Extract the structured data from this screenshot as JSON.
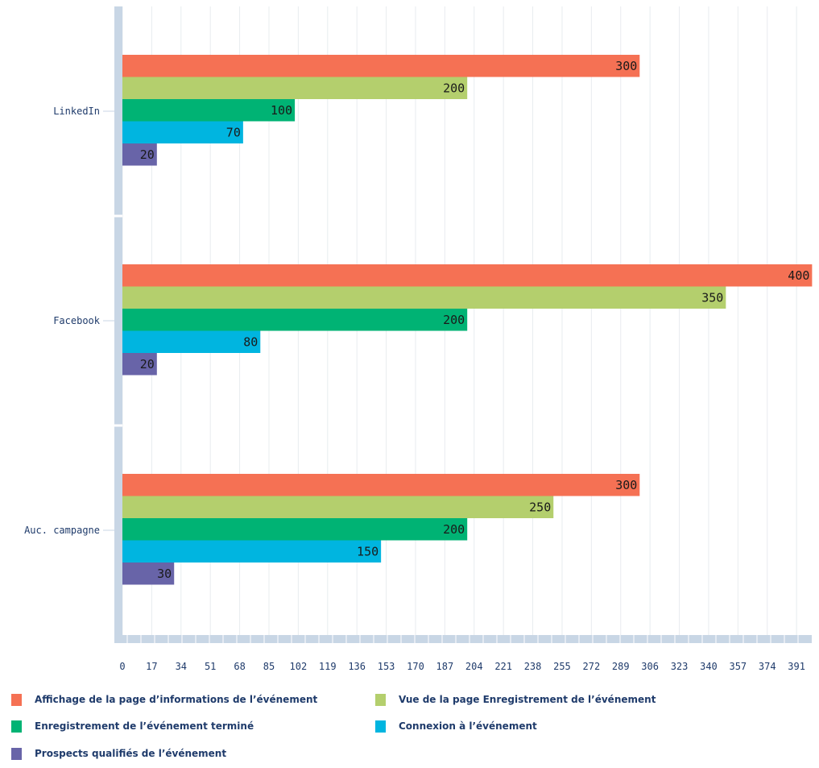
{
  "chart_data": {
    "type": "bar",
    "orientation": "horizontal",
    "categories": [
      "LinkedIn",
      "Facebook",
      "Auc. campagne"
    ],
    "series": [
      {
        "name": "Affichage de la page d’informations de l’événement",
        "color": "#f57154",
        "values": [
          300,
          400,
          300
        ]
      },
      {
        "name": "Vue de la page Enregistrement de l’événement",
        "color": "#b4cf6d",
        "values": [
          200,
          350,
          250
        ]
      },
      {
        "name": "Enregistrement de l’événement terminé",
        "color": "#00b374",
        "values": [
          100,
          200,
          200
        ]
      },
      {
        "name": "Connexion à l’événement",
        "color": "#00b5e0",
        "values": [
          70,
          80,
          150
        ]
      },
      {
        "name": "Prospects qualifiés de l’événement",
        "color": "#6864a8",
        "values": [
          20,
          20,
          30
        ]
      }
    ],
    "xticks": [
      0,
      17,
      34,
      51,
      68,
      85,
      102,
      119,
      136,
      153,
      170,
      187,
      204,
      221,
      238,
      255,
      272,
      289,
      306,
      323,
      340,
      357,
      374,
      391
    ],
    "xlim": [
      0,
      400
    ],
    "title": "",
    "xlabel": "",
    "ylabel": "",
    "grid": true,
    "legend_position": "bottom"
  }
}
